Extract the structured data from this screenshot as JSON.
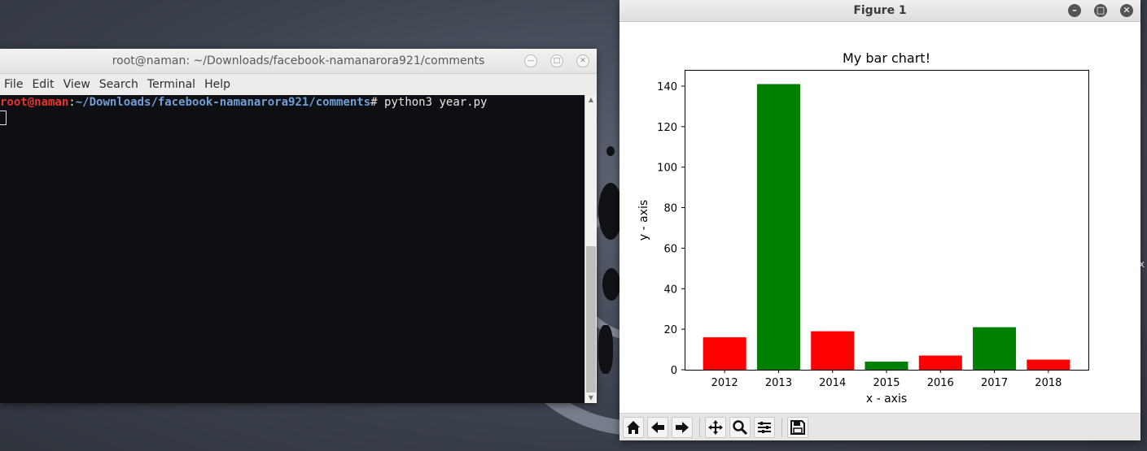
{
  "terminal": {
    "title": "root@naman: ~/Downloads/facebook-namanarora921/comments",
    "menu": [
      "File",
      "Edit",
      "View",
      "Search",
      "Terminal",
      "Help"
    ],
    "prompt_user": "root@naman",
    "prompt_sep": ":",
    "prompt_path": "~/Downloads/facebook-namanarora921/comments",
    "prompt_symbol": "#",
    "command": " python3 year.py"
  },
  "figure": {
    "window_title": "Figure 1"
  },
  "colors": {
    "red": "#ff0000",
    "green": "#008000"
  },
  "chart_data": {
    "type": "bar",
    "title": "My bar chart!",
    "xlabel": "x - axis",
    "ylabel": "y - axis",
    "categories": [
      "2012",
      "2013",
      "2014",
      "2015",
      "2016",
      "2017",
      "2018"
    ],
    "values": [
      16,
      141,
      19,
      4,
      7,
      21,
      5
    ],
    "bar_colors": [
      "red",
      "green",
      "red",
      "green",
      "red",
      "green",
      "red"
    ],
    "ylim": [
      0,
      148
    ],
    "yticks": [
      0,
      20,
      40,
      60,
      80,
      100,
      120,
      140
    ],
    "grid": false,
    "legend": "none"
  },
  "toolbar_icons": [
    "home-icon",
    "back-icon",
    "forward-icon",
    "pan-icon",
    "zoom-icon",
    "configure-subplots-icon",
    "save-icon"
  ]
}
